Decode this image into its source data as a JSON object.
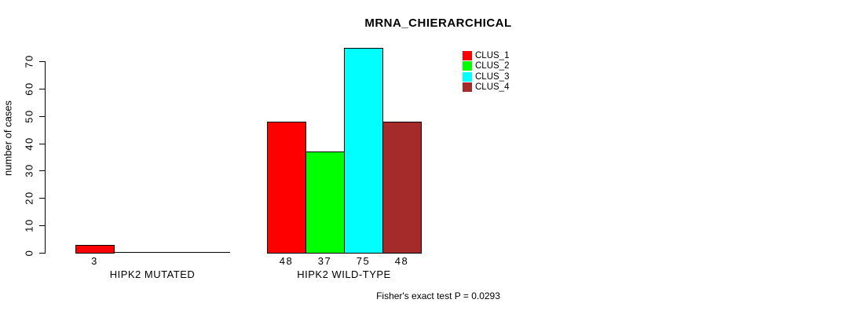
{
  "chart_data": {
    "type": "bar",
    "title": "MRNA_CHIERARCHICAL",
    "ylabel": "number of cases",
    "xlabel": "",
    "footnote": "Fisher's exact test P = 0.0293",
    "groups": [
      "HIPK2 MUTATED",
      "HIPK2 WILD-TYPE"
    ],
    "series": [
      {
        "name": "CLUS_1",
        "color": "#ff0000",
        "values": [
          3,
          48
        ]
      },
      {
        "name": "CLUS_2",
        "color": "#00ff00",
        "values": [
          0,
          37
        ]
      },
      {
        "name": "CLUS_3",
        "color": "#00ffff",
        "values": [
          0,
          75
        ]
      },
      {
        "name": "CLUS_4",
        "color": "#a52a2a",
        "values": [
          0,
          48
        ]
      }
    ],
    "yticks": [
      0,
      10,
      20,
      30,
      40,
      50,
      60,
      70
    ],
    "ylim": [
      0,
      75
    ],
    "grid": false,
    "legend_position": "top-right",
    "value_labels_shown_for_nonzero_only": true,
    "axis_color": "#000000",
    "background_color": "#ffffff"
  }
}
